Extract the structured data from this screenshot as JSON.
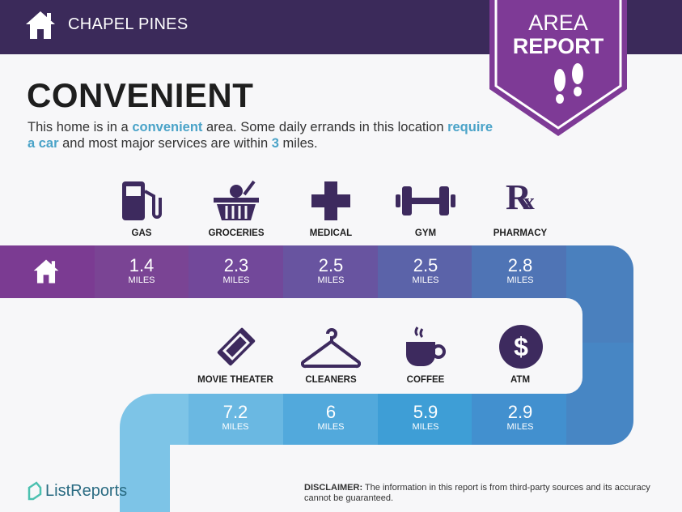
{
  "header": {
    "location": "CHAPEL PINES",
    "badge_line1": "AREA",
    "badge_line2": "REPORT"
  },
  "title": "CONVENIENT",
  "description": {
    "p1": "This home is in a ",
    "h1": "convenient",
    "p2": " area. Some daily errands in this location ",
    "h2": "require a car",
    "p3": " and most major services are within ",
    "h3": "3",
    "p4": " miles."
  },
  "unit": "MILES",
  "top_row": [
    {
      "label": "GAS",
      "value": "1.4",
      "icon": "gas-pump-icon"
    },
    {
      "label": "GROCERIES",
      "value": "2.3",
      "icon": "grocery-basket-icon"
    },
    {
      "label": "MEDICAL",
      "value": "2.5",
      "icon": "medical-cross-icon"
    },
    {
      "label": "GYM",
      "value": "2.5",
      "icon": "dumbbell-icon"
    },
    {
      "label": "PHARMACY",
      "value": "2.8",
      "icon": "rx-icon"
    }
  ],
  "bottom_row": [
    {
      "label": "MOVIE THEATER",
      "value": "7.2",
      "icon": "ticket-icon"
    },
    {
      "label": "CLEANERS",
      "value": "6",
      "icon": "hanger-icon"
    },
    {
      "label": "COFFEE",
      "value": "5.9",
      "icon": "coffee-cup-icon"
    },
    {
      "label": "ATM",
      "value": "2.9",
      "icon": "dollar-icon"
    }
  ],
  "colors": {
    "header": "#3b2a5a",
    "badge": "#7e3a96",
    "accent": "#4aa3c8",
    "icon": "#3d2a5e"
  },
  "footer": {
    "logo": "ListReports",
    "disclaimer_label": "DISCLAIMER:",
    "disclaimer_text": " The information in this report is from third-party sources and its accuracy cannot be guaranteed."
  }
}
